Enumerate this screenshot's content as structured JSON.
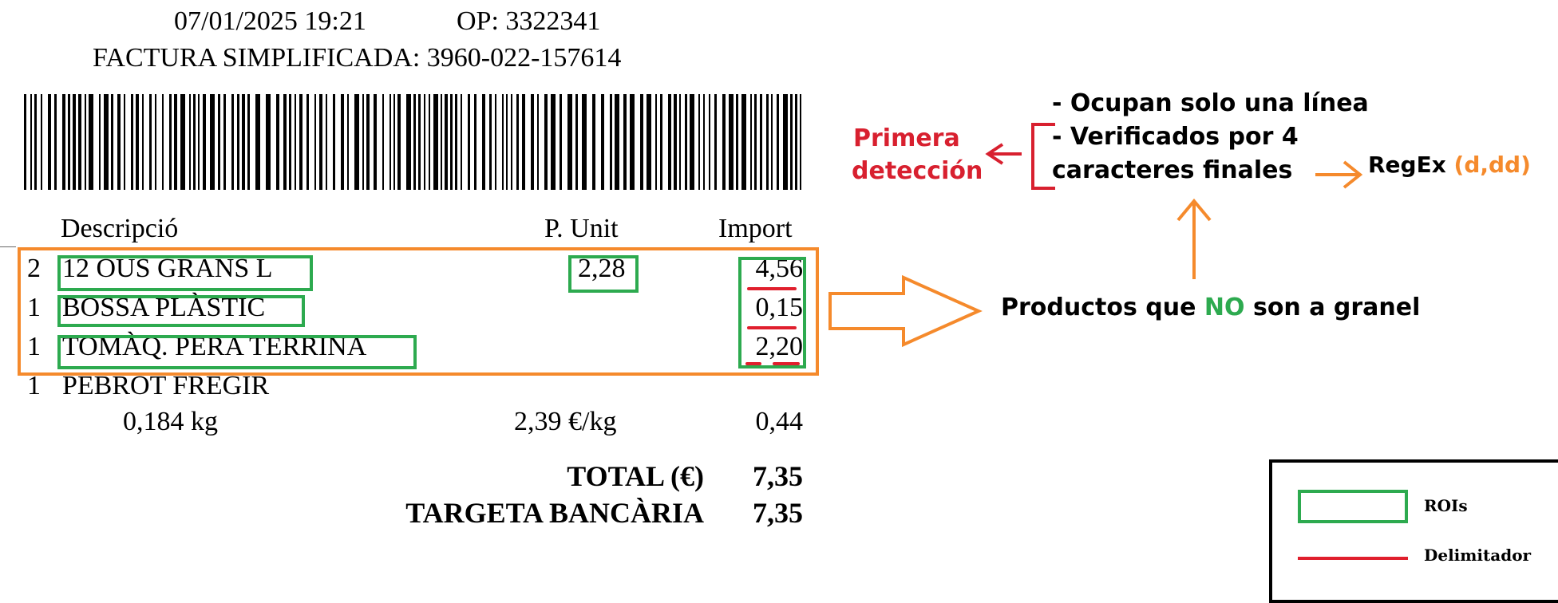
{
  "receipt": {
    "datetime": "07/01/2025 19:21",
    "op": "OP: 3322341",
    "invoice": "FACTURA SIMPLIFICADA: 3960-022-157614",
    "headers": {
      "desc": "Descripció",
      "unit": "P. Unit",
      "import": "Import"
    },
    "items": [
      {
        "qty": "2",
        "desc": "12 OUS GRANS L",
        "unit": "2,28",
        "import": "4,56"
      },
      {
        "qty": "1",
        "desc": "BOSSA PLÀSTIC",
        "unit": "",
        "import": "0,15"
      },
      {
        "qty": "1",
        "desc": "TOMÀQ. PERA TERRINA",
        "unit": "",
        "import": "2,20"
      },
      {
        "qty": "1",
        "desc": "PEBROT FREGIR",
        "unit": "",
        "import": ""
      }
    ],
    "bulk_line": {
      "weight": "0,184 kg",
      "price_per_kg": "2,39 €/kg",
      "import": "0,44"
    },
    "total_label": "TOTAL (€)",
    "total_value": "7,35",
    "card_label": "TARGETA BANCÀRIA",
    "card_value": "7,35"
  },
  "annotations": {
    "first_detection": [
      "Primera",
      "detección"
    ],
    "rules": [
      "- Ocupan solo una línea",
      "- Verificados por 4",
      "caracteres finales"
    ],
    "regex_label": "RegEx",
    "regex_pattern": "(d,dd)",
    "products_prefix": "Productos que ",
    "products_highlight": "NO",
    "products_suffix": " son a granel"
  },
  "legend": {
    "roi_label": "ROIs",
    "delimiter_label": "Delimitador"
  },
  "colors": {
    "green": "#2daa4f",
    "orange": "#f58a2c",
    "red": "#e01f2d",
    "crimson": "#d8202f"
  }
}
